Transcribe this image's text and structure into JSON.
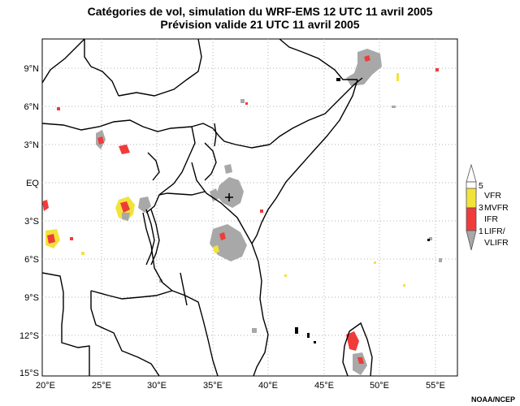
{
  "title": {
    "line1": "Catégories de vol, simulation du WRF-EMS 12 UTC 11 avril 2005",
    "line2": "Prévision valide 21 UTC 11 avril 2005"
  },
  "axes": {
    "lat_labels": [
      "9°N",
      "6°N",
      "3°N",
      "EQ",
      "3°S",
      "6°S",
      "9°S",
      "12°S",
      "15°S"
    ],
    "lon_labels": [
      "20°E",
      "25°E",
      "30°E",
      "35°E",
      "40°E",
      "45°E",
      "50°E",
      "55°E"
    ],
    "lat_range": [
      -15,
      11
    ],
    "lon_range": [
      20,
      57
    ]
  },
  "legend": {
    "categories": [
      {
        "code": "5",
        "name": "VFR",
        "color": "#f2e33a"
      },
      {
        "code": "3",
        "name": "MVFR",
        "color": "#f0f0f0"
      },
      {
        "code": "",
        "name": "IFR",
        "color": "#f03b3b"
      },
      {
        "code": "1",
        "name": "LIFR/",
        "color": "#a8a8a8"
      },
      {
        "code": "",
        "name": "VLIFR",
        "color": "#a8a8a8"
      }
    ]
  },
  "colors": {
    "vlifr_gray": "#a8a8a8",
    "ifr_red": "#f03b3b",
    "vfr_yellow": "#f2e33a",
    "border": "#000000",
    "gridline": "#b0b0b0"
  },
  "credit": "NOAA/NCEP"
}
